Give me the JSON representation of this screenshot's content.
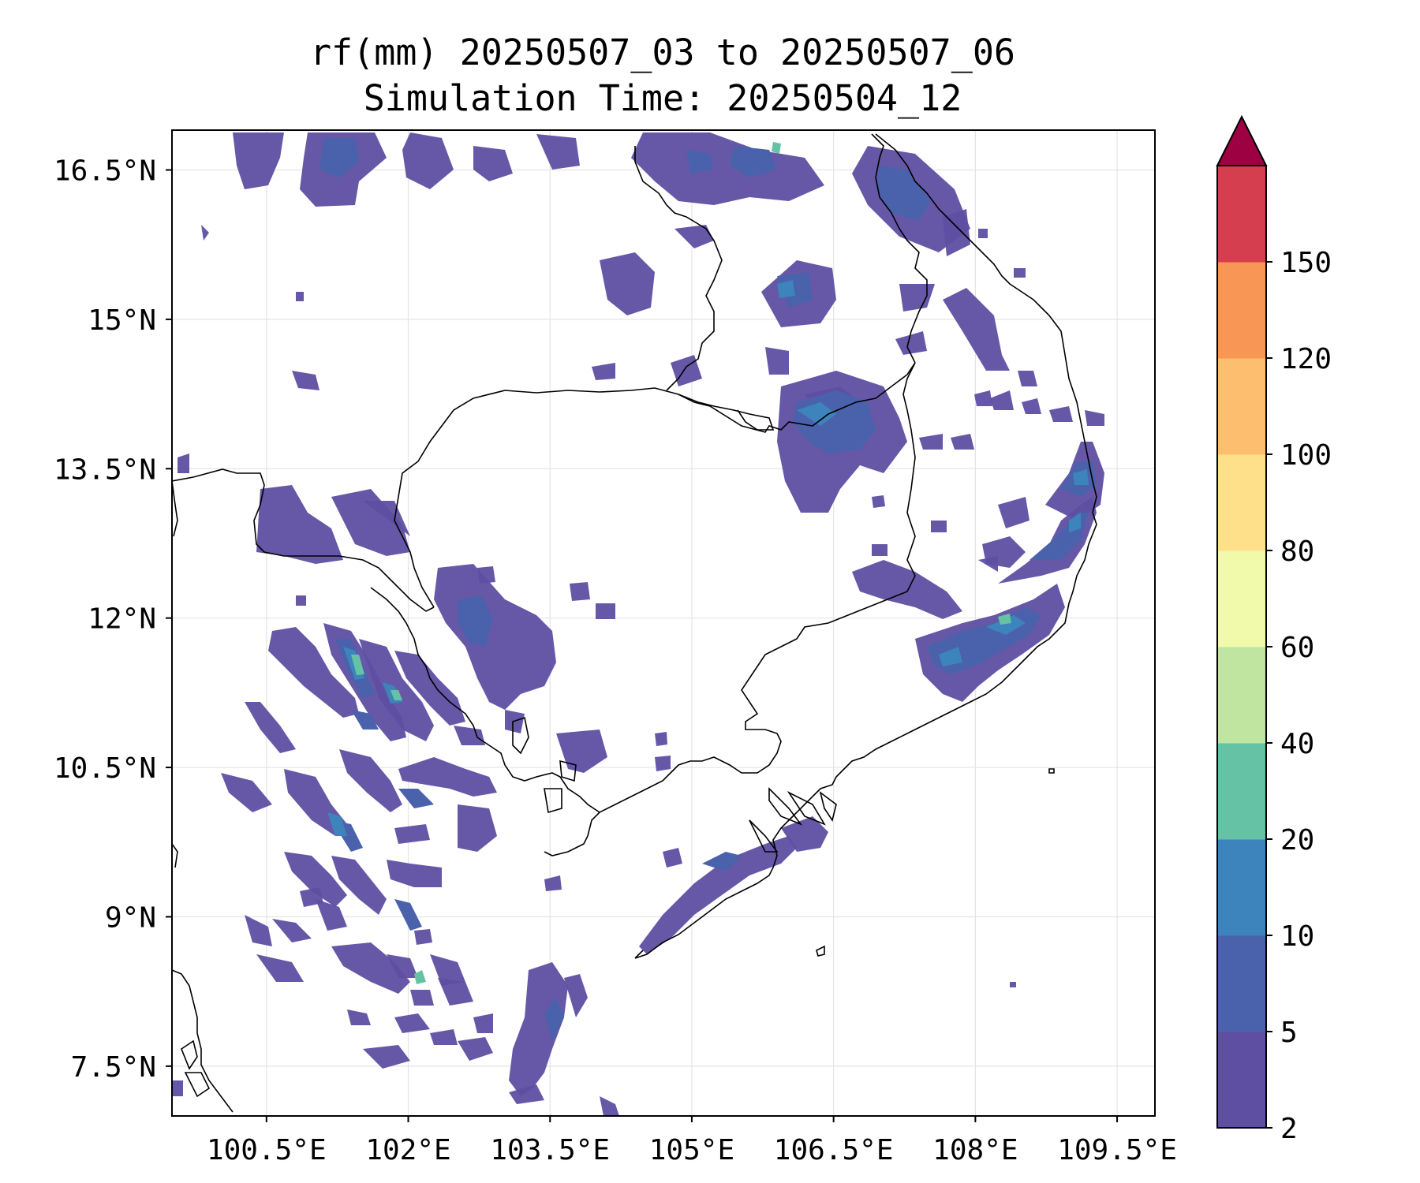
{
  "title": {
    "line1": "rf(mm) 20250507_03 to 20250507_06",
    "line2": "Simulation Time: 20250504_12"
  },
  "axes": {
    "lat_labels": [
      "16.5°N",
      "15°N",
      "13.5°N",
      "12°N",
      "10.5°N",
      "9°N",
      "7.5°N"
    ],
    "lon_labels": [
      "100.5°E",
      "102°E",
      "103.5°E",
      "105°E",
      "106.5°E",
      "108°E",
      "109.5°E"
    ],
    "lat_values": [
      16.5,
      15,
      13.5,
      12,
      10.5,
      9,
      7.5
    ],
    "lon_values": [
      100.5,
      102,
      103.5,
      105,
      106.5,
      108,
      109.5
    ],
    "lat_range": [
      7.0,
      16.9
    ],
    "lon_range": [
      99.5,
      109.9
    ],
    "gridlines": true
  },
  "colorbar": {
    "levels": [
      "2",
      "5",
      "10",
      "20",
      "40",
      "60",
      "80",
      "100",
      "120",
      "150"
    ],
    "colors": [
      "#5e4fa2",
      "#4a62ab",
      "#3d83bc",
      "#66c2a5",
      "#bfe5a0",
      "#f1f9ab",
      "#fee08b",
      "#fdbf6f",
      "#f89656",
      "#d53e4f"
    ],
    "extend_color": "#9e0142",
    "extend": "max"
  },
  "legend_colors": {
    "precip_2_5": "#5e4fa2",
    "precip_5_10": "#4a62ab",
    "precip_10_20": "#3d83bc",
    "precip_20_40": "#66c2a5"
  }
}
